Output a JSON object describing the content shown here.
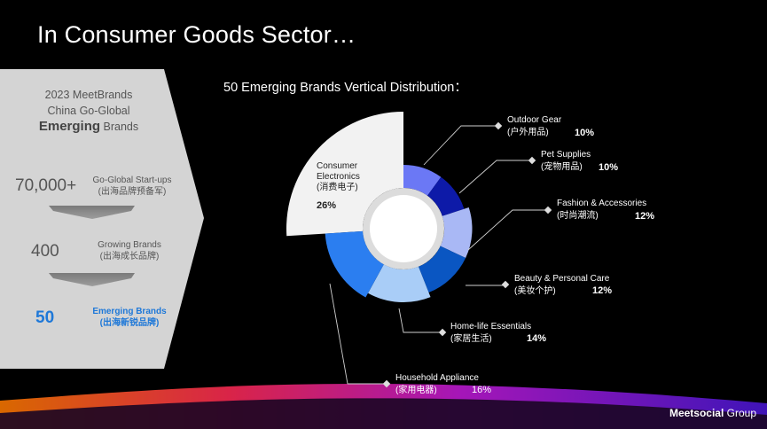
{
  "title": "In Consumer Goods Sector…",
  "chart_subtitle": "50 Emerging Brands Vertical Distribution：",
  "panel": {
    "head_line1": "2023 MeetBrands",
    "head_line2": "China Go-Global",
    "head_bold": "Emerging",
    "head_rest": " Brands",
    "tiers": [
      {
        "number": "70,000+",
        "label_en": "Go-Global Start-ups",
        "label_cn": "(出海品牌预备军)"
      },
      {
        "number": "400",
        "label_en": "Growing Brands",
        "label_cn": "(出海成长品牌)"
      },
      {
        "number": "50",
        "label_en": "Emerging Brands",
        "label_cn": "(出海新锐品牌)"
      }
    ]
  },
  "chart_data": {
    "type": "pie",
    "style": "donut with variable radius (rose)",
    "slices": [
      {
        "name_en": "Consumer Electronics",
        "name_cn": "(消费电子)",
        "value": 26,
        "pct_label": "26%",
        "color": "#f2f2f2"
      },
      {
        "name_en": "Outdoor Gear",
        "name_cn": "(户外用品)",
        "value": 10,
        "pct_label": "10%",
        "color": "#6b78f5"
      },
      {
        "name_en": "Pet Supplies",
        "name_cn": "(宠物用品)",
        "value": 10,
        "pct_label": "10%",
        "color": "#0d1aa8"
      },
      {
        "name_en": "Fashion & Accessories",
        "name_cn": "(时尚潮流)",
        "value": 12,
        "pct_label": "12%",
        "color": "#a9b8f5"
      },
      {
        "name_en": "Beauty & Personal Care",
        "name_cn": "(美妆个护)",
        "value": 12,
        "pct_label": "12%",
        "color": "#0a56c2"
      },
      {
        "name_en": "Home-life Essentials",
        "name_cn": "(家居生活)",
        "value": 14,
        "pct_label": "14%",
        "color": "#a9cdf7"
      },
      {
        "name_en": "Household Appliance",
        "name_cn": "(家用电器)",
        "value": 16,
        "pct_label": "16%",
        "color": "#2b7ef0"
      }
    ]
  },
  "logo": {
    "bold": "Meetsocial",
    "rest": " Group"
  }
}
